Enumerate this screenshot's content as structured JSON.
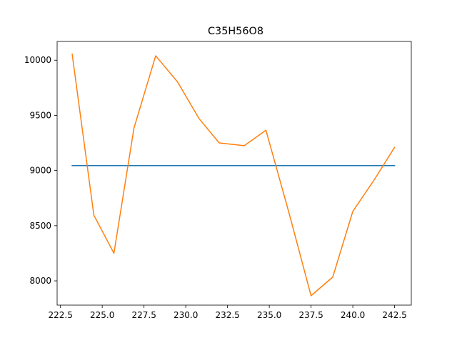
{
  "chart_data": {
    "type": "line",
    "title": "C35H56O8",
    "xlabel": "",
    "ylabel": "",
    "xlim": [
      222.3,
      243.5
    ],
    "ylim": [
      7780,
      10170
    ],
    "grid": false,
    "legend": "none",
    "x_ticks": [
      222.5,
      225.0,
      227.5,
      230.0,
      232.5,
      235.0,
      237.5,
      240.0,
      242.5
    ],
    "x_tick_labels": [
      "222.5",
      "225.0",
      "227.5",
      "230.0",
      "232.5",
      "235.0",
      "237.5",
      "240.0",
      "242.5"
    ],
    "y_ticks": [
      8000,
      8500,
      9000,
      9500,
      10000
    ],
    "y_tick_labels": [
      "8000",
      "8500",
      "9000",
      "9500",
      "10000"
    ],
    "series": [
      {
        "color": "#1f77b4",
        "x": [
          223.2,
          242.5
        ],
        "y": [
          9045,
          9045
        ]
      },
      {
        "color": "#ff7f0e",
        "x": [
          223.2,
          224.5,
          225.7,
          226.9,
          228.2,
          229.5,
          230.8,
          232.0,
          233.5,
          234.8,
          236.2,
          237.5,
          238.8,
          240.0,
          241.3,
          242.5
        ],
        "y": [
          10055,
          8595,
          8250,
          9385,
          10040,
          9805,
          9470,
          9250,
          9225,
          9365,
          8605,
          7865,
          8035,
          8630,
          8920,
          9210
        ]
      }
    ]
  }
}
